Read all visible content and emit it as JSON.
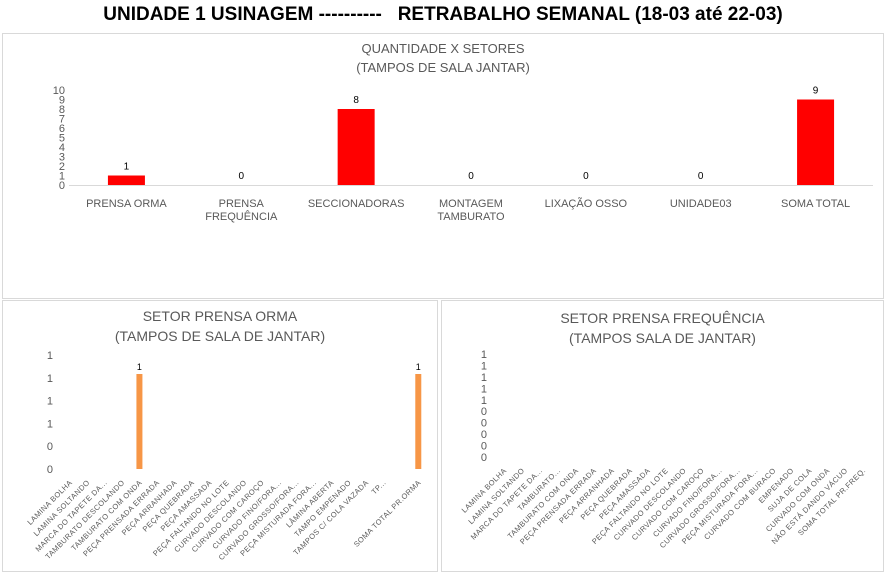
{
  "page": {
    "title": "UNIDADE 1 USINAGEM ----------   RETRABALHO SEMANAL (18-03 até 22-03)"
  },
  "chart_data": [
    {
      "type": "bar",
      "title": "QUANTIDADE X SETORES",
      "subtitle": "(TAMPOS DE SALA JANTAR)",
      "categories": [
        [
          "PRENSA  ORMA"
        ],
        [
          "PRENSA",
          "FREQUÊNCIA"
        ],
        [
          "SECCIONADORAS"
        ],
        [
          "MONTAGEM",
          "TAMBURATO"
        ],
        [
          "LIXAÇÃO  OSSO"
        ],
        [
          "UNIDADE03"
        ],
        [
          "SOMA TOTAL"
        ]
      ],
      "values": [
        1,
        0,
        8,
        0,
        0,
        0,
        9
      ],
      "data_labels": [
        "1",
        "0",
        "8",
        "0",
        "0",
        "0",
        "9"
      ],
      "y_ticks": [
        "0",
        "1",
        "2",
        "3",
        "4",
        "5",
        "6",
        "7",
        "8",
        "9",
        "10"
      ],
      "ylim": [
        0,
        10
      ],
      "grid": false,
      "legend": "none",
      "color": "#ff0000"
    },
    {
      "type": "bar",
      "title": "SETOR PRENSA ORMA",
      "subtitle": "(TAMPOS DE SALA DE JANTAR)",
      "categories": [
        "LAMINA BOLHA",
        "LAMINA SOLTANDO",
        "MARCA DO TAPETE DA...",
        "TAMBURATO DESCOLANDO",
        "TAMBURATO COM ONDA",
        "PEÇA PRENSADA ERRADA",
        "PEÇA ARRANHADA",
        "PEÇA QUEBRADA",
        "PEÇA AMASSADA",
        "PEÇA FALTANDO NO LOTE",
        "CURVADO DESCOLANDO",
        "CURVADO COM CAROÇO",
        "CURVADO FINO/FORA...",
        "CURVADO GROSSO/FORA...",
        "PEÇA MISTURADA FORA...",
        "LÂMINA ABERTA",
        "TAMPO EMPENADO",
        "TAMPOS C/ COLA VAZADA",
        "TP...",
        "",
        "SOMA TOTAL PR.ORMA"
      ],
      "values": [
        0,
        0,
        0,
        0,
        1,
        0,
        0,
        0,
        0,
        0,
        0,
        0,
        0,
        0,
        0,
        0,
        0,
        0,
        0,
        0,
        1
      ],
      "data_labels": [
        "",
        "",
        "",
        "",
        "1",
        "",
        "",
        "",
        "",
        "",
        "",
        "",
        "",
        "",
        "",
        "",
        "",
        "",
        "",
        "",
        "1"
      ],
      "y_ticks": [
        "0",
        "0",
        "1",
        "1",
        "1",
        "1"
      ],
      "ylim": [
        0,
        1.2
      ],
      "grid": false,
      "legend": "none",
      "color": "#f79646"
    },
    {
      "type": "bar",
      "title": "SETOR PRENSA FREQUÊNCIA",
      "subtitle": "(TAMPOS SALA DE JANTAR)",
      "categories": [
        "LAMINA BOLHA",
        "LAMINA SOLTANDO",
        "MARCA DO  TAPETE DA...",
        "TAMBURATO...",
        "TAMBURATO COM  ONDA",
        "PEÇA PRENSADA ERRADA",
        "PEÇA ARRANHADA",
        "PEÇA QUEBRADA",
        "PEÇA AMASSADA",
        "PEÇA FALTANDO NO  LOTE",
        "CURVADO DESCOLANDO",
        "CURVADO COM CAROÇO",
        "CURVADO FINO/FORA...",
        "CURVADO GROSSO/FORA...",
        "PEÇA MISTURADA FORA...",
        "CURVADO COM BURACO",
        "EMPENADO",
        "SUJA DE COLA",
        "CURVADO COM  ONDA",
        "NÃO ESTÁ DANDO VÁCUO",
        "SOMA TOTAL PR.FREQ."
      ],
      "values": [
        0,
        0,
        0,
        0,
        0,
        0,
        0,
        0,
        0,
        0,
        0,
        0,
        0,
        0,
        0,
        0,
        0,
        0,
        0,
        0,
        0
      ],
      "data_labels": [],
      "y_ticks": [
        "0",
        "0",
        "0",
        "0",
        "0",
        "1",
        "1",
        "1",
        "1",
        "1"
      ],
      "ylim": [
        0,
        1
      ],
      "grid": false,
      "legend": "none",
      "color": "#4472c4"
    }
  ]
}
